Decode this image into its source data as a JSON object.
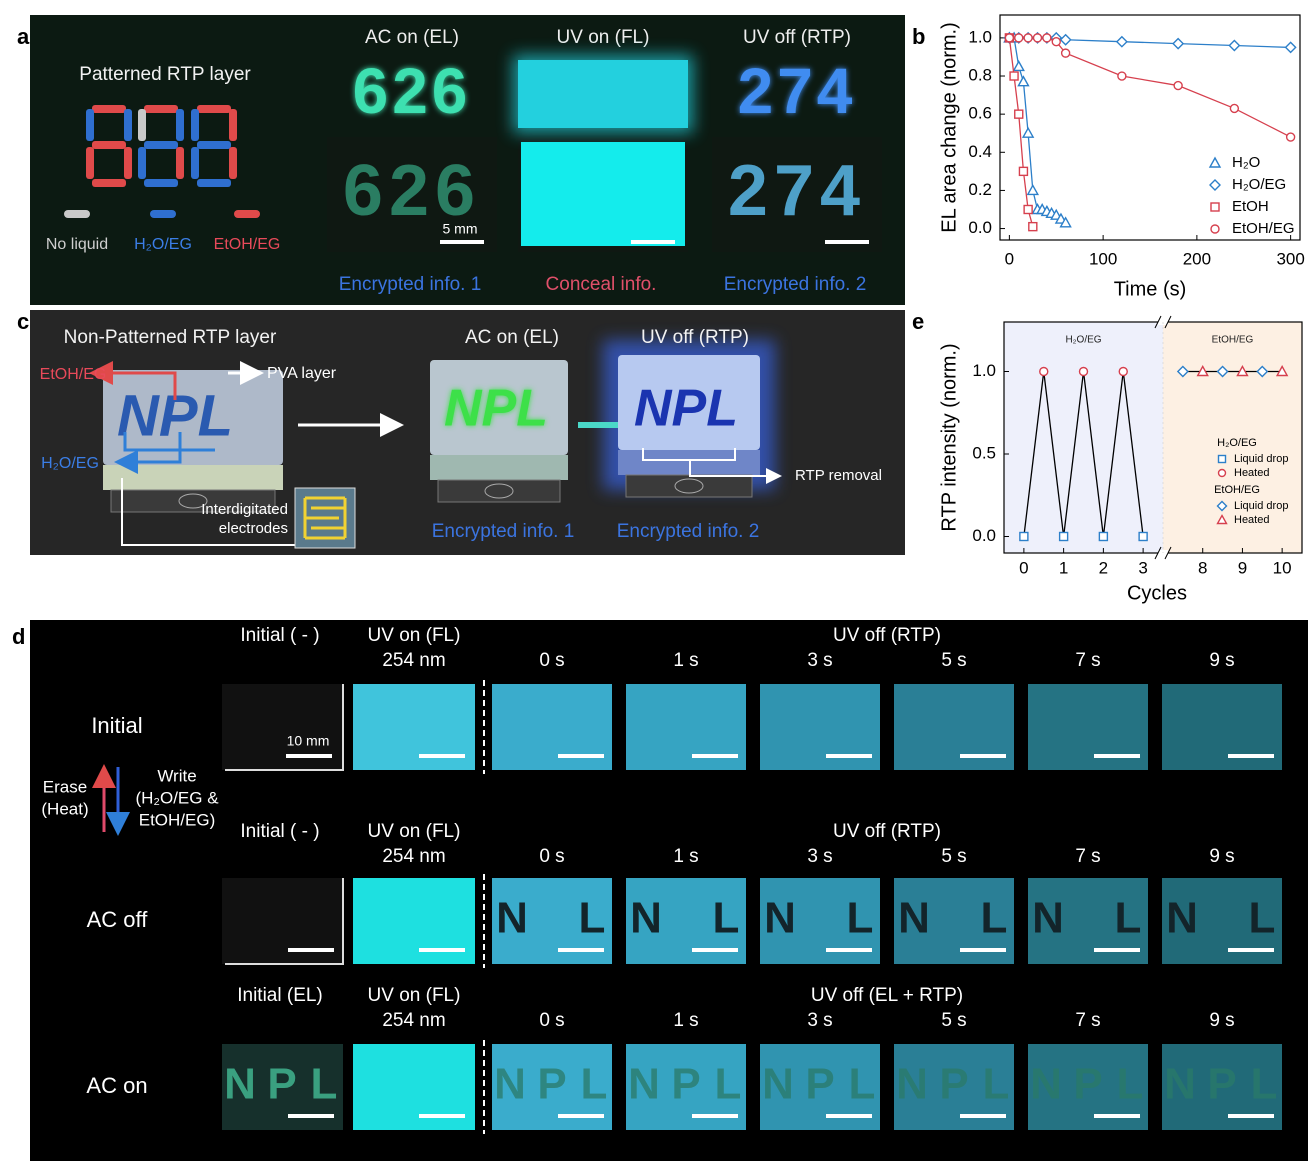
{
  "panel_labels": {
    "a": "a",
    "b": "b",
    "c": "c",
    "d": "d",
    "e": "e"
  },
  "panel_a": {
    "title": "Patterned RTP layer",
    "legend": [
      "No liquid",
      "H₂O/EG",
      "EtOH/EG"
    ],
    "columns": [
      {
        "header": "AC on (EL)",
        "display": "626",
        "caption": "Encrypted info. 1",
        "scale_bar": "5 mm"
      },
      {
        "header": "UV on (FL)",
        "caption": "Conceal info."
      },
      {
        "header": "UV off (RTP)",
        "display": "274",
        "caption": "Encrypted info. 2"
      }
    ]
  },
  "panel_c": {
    "title": "Non-Patterned RTP layer",
    "letters": "NPL",
    "labels": {
      "etoh": "EtOH/EG",
      "pva": "PVA layer",
      "h2o": "H₂O/EG",
      "electrodes": [
        "Interdigitated",
        "electrodes"
      ],
      "removal": "RTP removal"
    },
    "headers": [
      "AC on (EL)",
      "UV off (RTP)"
    ],
    "captions": [
      "Encrypted info. 1",
      "Encrypted info. 2"
    ]
  },
  "panel_d": {
    "side": {
      "erase": [
        "Erase",
        "(Heat)"
      ],
      "write": [
        "Write",
        "(H₂O/EG &",
        "EtOH/EG)"
      ]
    },
    "scale_bar": "10 mm",
    "fl_header": [
      "UV on (FL)",
      "254 nm"
    ],
    "times": [
      "0 s",
      "1 s",
      "3 s",
      "5 s",
      "7 s",
      "9 s"
    ],
    "rows": [
      {
        "label": "Initial",
        "initial": "Initial ( - )",
        "rtp_header": "UV off  (RTP)"
      },
      {
        "label": "AC off",
        "initial": "Initial ( - )",
        "rtp_header": "UV off  (RTP)",
        "letters": [
          "N",
          "L"
        ]
      },
      {
        "label": "AC on",
        "initial": "Initial (EL)",
        "rtp_header": "UV off  (EL + RTP)",
        "letters": [
          "N",
          "P",
          "L"
        ]
      }
    ]
  },
  "chart_data": [
    {
      "type": "line",
      "xlabel": "Time (s)",
      "ylabel": "EL area change (norm.)",
      "xlim": [
        -10,
        310
      ],
      "ylim": [
        -0.06,
        1.12
      ],
      "xticks": [
        0,
        100,
        200,
        300
      ],
      "yticks": [
        {
          "value": 0,
          "label": "0.0"
        },
        0.2,
        0.4,
        0.6,
        0.8,
        {
          "value": 1,
          "label": "1.0"
        }
      ],
      "legend": "lower right",
      "series": [
        {
          "name": "H₂O",
          "color": "#2c7fc9",
          "marker": "triangle",
          "x": [
            0,
            5,
            10,
            15,
            20,
            25,
            30,
            35,
            40,
            45,
            50,
            55,
            60
          ],
          "values": [
            1.0,
            1.0,
            0.85,
            0.77,
            0.5,
            0.2,
            0.1,
            0.1,
            0.09,
            0.08,
            0.07,
            0.05,
            0.03
          ]
        },
        {
          "name": "H₂O/EG",
          "color": "#2c7fc9",
          "marker": "diamond",
          "x": [
            0,
            10,
            20,
            30,
            40,
            50,
            60,
            120,
            180,
            240,
            300
          ],
          "values": [
            1.0,
            1.0,
            1.0,
            1.0,
            1.0,
            1.0,
            0.99,
            0.98,
            0.97,
            0.96,
            0.95
          ]
        },
        {
          "name": "EtOH",
          "color": "#d6404e",
          "marker": "square",
          "x": [
            0,
            5,
            10,
            15,
            20,
            25
          ],
          "values": [
            1.0,
            0.8,
            0.6,
            0.3,
            0.1,
            0.01
          ]
        },
        {
          "name": "EtOH/EG",
          "color": "#d6404e",
          "marker": "circle",
          "x": [
            0,
            10,
            20,
            30,
            40,
            50,
            60,
            120,
            180,
            240,
            300
          ],
          "values": [
            1.0,
            1.0,
            1.0,
            1.0,
            1.0,
            0.98,
            0.92,
            0.8,
            0.75,
            0.63,
            0.48
          ]
        }
      ]
    },
    {
      "type": "broken-line",
      "xlabel": "Cycles",
      "ylabel": "RTP intensity (norm.)",
      "ylim": [
        -0.1,
        1.3
      ],
      "yticks": [
        {
          "value": 0,
          "label": "0.0"
        },
        0.5,
        {
          "value": 1,
          "label": "1.0"
        }
      ],
      "line_color": "#000000",
      "segments": [
        {
          "name": "H₂O/EG",
          "background": "#eef0fb",
          "xlim": [
            -0.5,
            3.5
          ],
          "xticks": [
            0,
            1,
            2,
            3
          ],
          "series": [
            {
              "name": "Liquid drop",
              "color": "#2c7fc9",
              "marker": "square",
              "x": [
                0,
                1,
                2,
                3
              ],
              "values": [
                0,
                0,
                0,
                0
              ]
            },
            {
              "name": "Heated",
              "color": "#d6404e",
              "marker": "circle",
              "x": [
                0.5,
                1.5,
                2.5
              ],
              "values": [
                1,
                1,
                1
              ]
            }
          ]
        },
        {
          "name": "EtOH/EG",
          "background": "#fdf0e3",
          "xlim": [
            7,
            10.5
          ],
          "xticks": [
            8,
            9,
            10
          ],
          "series": [
            {
              "name": "Liquid drop",
              "color": "#2c7fc9",
              "marker": "diamond",
              "x": [
                7.5,
                8.5,
                9.5
              ],
              "values": [
                1,
                1,
                1
              ]
            },
            {
              "name": "Heated",
              "color": "#d6404e",
              "marker": "triangle",
              "x": [
                8,
                9,
                10
              ],
              "values": [
                1,
                1,
                1
              ]
            }
          ]
        }
      ]
    }
  ]
}
